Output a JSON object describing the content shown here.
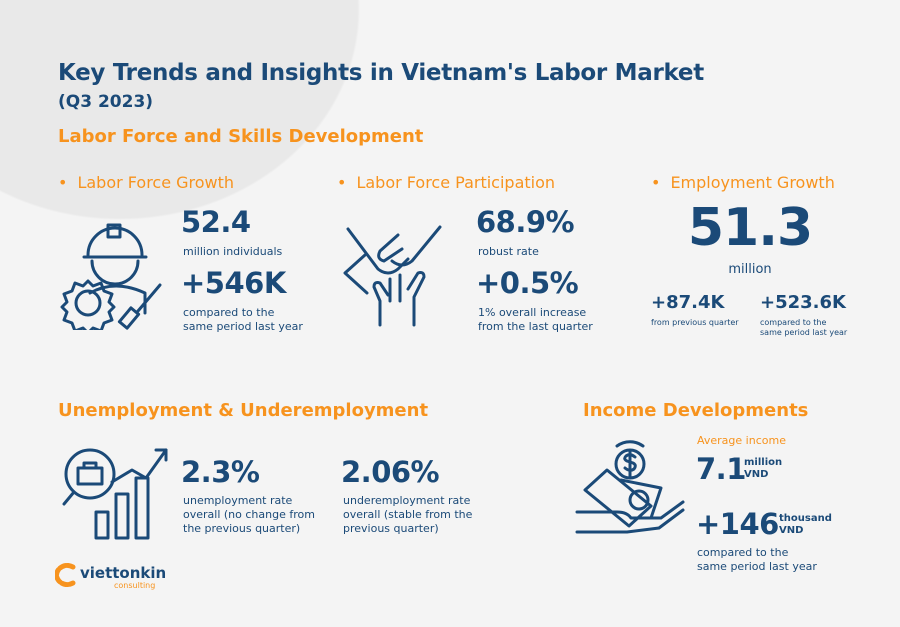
{
  "title": "Key Trends and Insights in Vietnam's Labor Market",
  "subtitle": "(Q3 2023)",
  "colors": {
    "navy": "#1b4a78",
    "orange": "#f7931e",
    "background": "#f4f4f4"
  },
  "labor_section": {
    "heading": "Labor Force and Skills Development",
    "growth": {
      "label": "Labor Force Growth",
      "value": "52.4",
      "value_caption": "million individuals",
      "change": "+546K",
      "change_caption_1": "compared to the",
      "change_caption_2": "same period last year",
      "icon": "worker-gear-icon"
    },
    "participation": {
      "label": "Labor Force Participation",
      "value": "68.9%",
      "value_caption": "robust rate",
      "change": "+0.5%",
      "change_caption_1": "1% overall increase",
      "change_caption_2": "from the last quarter",
      "icon": "hands-together-icon"
    },
    "employment": {
      "label": "Employment Growth",
      "value": "51.3",
      "unit": "million",
      "change1": "+87.4K",
      "change1_caption": "from previous quarter",
      "change2": "+523.6K",
      "change2_caption_1": "compared to the",
      "change2_caption_2": "same period last year"
    }
  },
  "unemployment_section": {
    "heading": "Unemployment & Underemployment",
    "icon": "job-search-chart-icon",
    "unemployment": {
      "value": "2.3%",
      "caption_1": "unemployment rate",
      "caption_2": "overall (no change from",
      "caption_3": "the previous quarter)"
    },
    "underemployment": {
      "value": "2.06%",
      "caption_1": "underemployment rate",
      "caption_2": "overall (stable from the",
      "caption_3": "previous quarter)"
    }
  },
  "income_section": {
    "heading": "Income Developments",
    "icon": "hand-money-icon",
    "avg_label": "Average income",
    "avg_value": "7.1",
    "avg_unit_1": "million",
    "avg_unit_2": "VND",
    "change": "+146",
    "change_unit_1": "thousand",
    "change_unit_2": "VND",
    "change_caption_1": "compared to the",
    "change_caption_2": "same period last year"
  },
  "logo": {
    "name": "viettonkin",
    "tagline": "consulting"
  }
}
